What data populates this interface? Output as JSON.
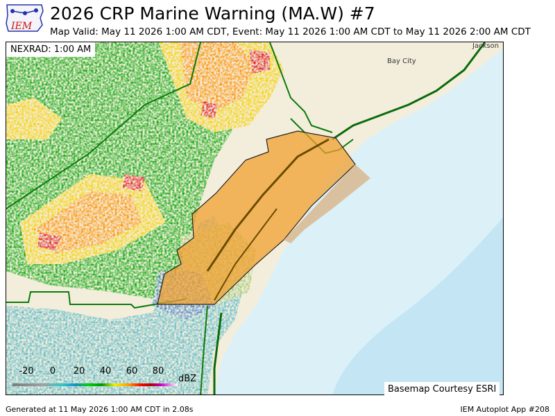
{
  "header": {
    "title": "2026 CRP  Marine Warning (MA.W) #7",
    "subtitle": "Map Valid: May 11 2026 1:00 AM CDT, Event: May 11 2026 1:00 AM CDT to May 11 2026 2:00 AM CDT"
  },
  "logo": {
    "text": "IEM",
    "icon": "iowa-state-logo-icon"
  },
  "map": {
    "radar_label": "NEXRAD: 1:00 AM",
    "basemap_credit": "Basemap Courtesy ESRI",
    "cities": [
      "Bay City",
      "Jackson"
    ],
    "warning_polygon_color": "#f0a030",
    "county_border_color": "#0a7a0a",
    "water_color": "#dcf0f8",
    "land_color": "#f3eedc"
  },
  "legend": {
    "ticks": [
      "-20",
      "0",
      "20",
      "40",
      "60",
      "80"
    ],
    "unit": "dBZ"
  },
  "footer": {
    "generated": "Generated at 11 May 2026 1:00 AM CDT in 2.08s",
    "app": "IEM Autoplot App #208"
  }
}
